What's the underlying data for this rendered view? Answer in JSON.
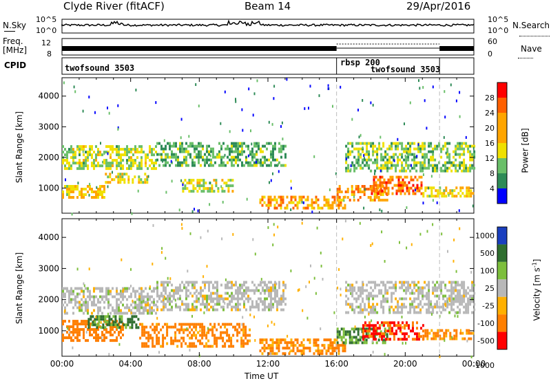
{
  "header": {
    "station": "Clyde River (fitACF)",
    "beam": "Beam 14",
    "date": "29/Apr/2016"
  },
  "top_panels": {
    "nsky_label": "N.Sky",
    "nsearch_label": "N.Search",
    "noise_ticks_left": [
      "10^5",
      "10^0"
    ],
    "noise_ticks_right": [
      "10^5",
      "10^0"
    ],
    "freq_label": "Freq.",
    "freq_unit": "[MHz]",
    "freq_ticks": [
      "12",
      "8"
    ],
    "nave_label": "Nave",
    "nave_ticks": [
      "60",
      "0"
    ],
    "cpid_label": "CPID",
    "cpid_segments": [
      {
        "label": "twofsound 3503",
        "start_hour": 0,
        "end_hour": 16
      },
      {
        "label": "rbsp 200",
        "start_hour": 16,
        "end_hour": 22
      },
      {
        "label": "twofsound 3503",
        "start_hour": 16,
        "end_hour": 22
      }
    ]
  },
  "colors": {
    "power_scale": [
      "#0000ff",
      "#2e8b57",
      "#6abf69",
      "#f0e000",
      "#ffa500",
      "#ff6000",
      "#ff0000"
    ],
    "velocity_scale": [
      "#1a3fbf",
      "#2f6e2f",
      "#7dbf3c",
      "#b8b8b8",
      "#ffb000",
      "#ff7f00",
      "#ff0000"
    ],
    "ground_scatter": "#b8b8b8"
  },
  "chart_data": [
    {
      "type": "heatmap",
      "title": "",
      "xlabel": "Time UT",
      "ylabel": "Slant Range [km]",
      "x_ticks": [
        "00:00",
        "04:00",
        "08:00",
        "12:00",
        "16:00",
        "20:00",
        "00:00"
      ],
      "y_ticks": [
        "1000",
        "2000",
        "3000",
        "4000"
      ],
      "ylim": [
        180,
        4600
      ],
      "xlim_hours": [
        0,
        24
      ],
      "colorbar_label": "Power [dB]",
      "colorbar_ticks": [
        "4",
        "8",
        "12",
        "16",
        "20",
        "24",
        "28"
      ],
      "colorbar_range": [
        0,
        32
      ],
      "scatter_bands": [
        {
          "t0": 0,
          "t1": 5.5,
          "r0": 1600,
          "r1": 2400,
          "value": 14
        },
        {
          "t0": 5.5,
          "t1": 13,
          "r0": 1700,
          "r1": 2500,
          "value": 10
        },
        {
          "t0": 0,
          "t1": 2.5,
          "r0": 700,
          "r1": 1100,
          "value": 18
        },
        {
          "t0": 2.5,
          "t1": 5,
          "r0": 1200,
          "r1": 1500,
          "value": 16
        },
        {
          "t0": 7,
          "t1": 10,
          "r0": 900,
          "r1": 1300,
          "value": 14
        },
        {
          "t0": 11.5,
          "t1": 16.5,
          "r0": 350,
          "r1": 750,
          "value": 20
        },
        {
          "t0": 16,
          "t1": 19,
          "r0": 600,
          "r1": 1100,
          "value": 22
        },
        {
          "t0": 18,
          "t1": 21,
          "r0": 800,
          "r1": 1400,
          "value": 24
        },
        {
          "t0": 16.5,
          "t1": 24,
          "r0": 1600,
          "r1": 2500,
          "value": 12
        },
        {
          "t0": 21,
          "t1": 24,
          "r0": 750,
          "r1": 1050,
          "value": 18
        }
      ]
    },
    {
      "type": "heatmap",
      "title": "",
      "xlabel": "Time UT",
      "ylabel": "Slant Range [km]",
      "x_ticks": [
        "00:00",
        "04:00",
        "08:00",
        "12:00",
        "16:00",
        "20:00",
        "00:00"
      ],
      "y_ticks": [
        "1000",
        "2000",
        "3000",
        "4000"
      ],
      "ylim": [
        180,
        4600
      ],
      "xlim_hours": [
        0,
        24
      ],
      "colorbar_label": "Velocity [m s^-1]",
      "colorbar_ticks": [
        "1000",
        "500",
        "100",
        "25",
        "-25",
        "-100",
        "-500",
        "-1000"
      ],
      "scatter_bands": [
        {
          "t0": 0,
          "t1": 5.5,
          "r0": 1600,
          "r1": 2400,
          "value": 0
        },
        {
          "t0": 5.5,
          "t1": 13,
          "r0": 1700,
          "r1": 2600,
          "value": 0
        },
        {
          "t0": 0,
          "t1": 3.5,
          "r0": 700,
          "r1": 1350,
          "value": -300
        },
        {
          "t0": 1.5,
          "t1": 4.5,
          "r0": 1100,
          "r1": 1500,
          "value": 150
        },
        {
          "t0": 4.5,
          "t1": 11,
          "r0": 500,
          "r1": 1250,
          "value": -200
        },
        {
          "t0": 11.5,
          "t1": 16.5,
          "r0": 250,
          "r1": 750,
          "value": -150
        },
        {
          "t0": 16,
          "t1": 19,
          "r0": 600,
          "r1": 1100,
          "value": 120
        },
        {
          "t0": 17.5,
          "t1": 21,
          "r0": 700,
          "r1": 1300,
          "value": -600
        },
        {
          "t0": 16.5,
          "t1": 24,
          "r0": 1600,
          "r1": 2600,
          "value": 0
        },
        {
          "t0": 21,
          "t1": 24,
          "r0": 750,
          "r1": 1050,
          "value": -150
        }
      ]
    }
  ]
}
